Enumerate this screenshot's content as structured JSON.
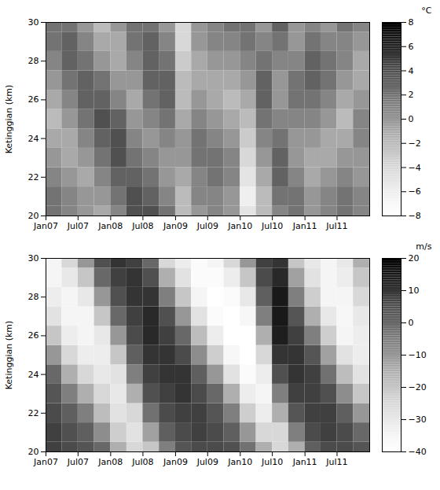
{
  "chart_data": [
    {
      "type": "heatmap",
      "y_label": "Ketinggian (km)",
      "x": [
        "2007-01",
        "2007-04",
        "2007-07",
        "2007-10",
        "2008-01",
        "2008-04",
        "2008-07",
        "2008-10",
        "2009-01",
        "2009-04",
        "2009-07",
        "2009-10",
        "2010-01",
        "2010-04",
        "2010-07",
        "2010-10",
        "2011-01",
        "2011-04",
        "2011-07",
        "2011-10"
      ],
      "y": [
        20,
        21,
        22,
        23,
        24,
        25,
        26,
        27,
        28,
        29,
        30
      ],
      "values": [
        [
          2,
          2,
          1,
          0,
          -1,
          -2,
          -1,
          0,
          1,
          2,
          2
        ],
        [
          1,
          1,
          0,
          -1,
          -1,
          0,
          1,
          2,
          3,
          3,
          2
        ],
        [
          0,
          0,
          -1,
          0,
          1,
          2,
          3,
          3,
          2,
          1,
          0
        ],
        [
          -1,
          0,
          1,
          2,
          3,
          4,
          3,
          2,
          0,
          -1,
          -2
        ],
        [
          1,
          2,
          3,
          4,
          4,
          3,
          1,
          0,
          -1,
          -1,
          0
        ],
        [
          4,
          4,
          3,
          2,
          1,
          0,
          -1,
          0,
          1,
          2,
          2
        ],
        [
          4,
          3,
          2,
          1,
          0,
          1,
          2,
          3,
          3,
          3,
          2
        ],
        [
          2,
          1,
          0,
          0,
          1,
          2,
          3,
          3,
          2,
          1,
          0
        ],
        [
          -2,
          -2,
          -1,
          0,
          0,
          -1,
          -2,
          -2,
          -3,
          -4,
          -4
        ],
        [
          0,
          1,
          1,
          2,
          2,
          1,
          0,
          -1,
          -1,
          0,
          0
        ],
        [
          1,
          1,
          2,
          2,
          1,
          0,
          -1,
          -1,
          0,
          1,
          1
        ],
        [
          0,
          0,
          1,
          1,
          0,
          -1,
          -2,
          -1,
          0,
          1,
          2
        ],
        [
          -5,
          -6,
          -5,
          -4,
          -3,
          -2,
          -1,
          0,
          1,
          2,
          2
        ],
        [
          -2,
          -2,
          -1,
          0,
          1,
          2,
          3,
          3,
          2,
          1,
          0
        ],
        [
          1,
          2,
          3,
          3,
          2,
          1,
          0,
          0,
          1,
          2,
          3
        ],
        [
          2,
          2,
          1,
          0,
          0,
          1,
          2,
          2,
          1,
          0,
          0
        ],
        [
          0,
          0,
          -1,
          -1,
          0,
          1,
          2,
          3,
          3,
          2,
          1
        ],
        [
          1,
          1,
          0,
          -1,
          -1,
          0,
          1,
          2,
          2,
          1,
          0
        ],
        [
          2,
          2,
          1,
          0,
          -1,
          -2,
          -1,
          0,
          1,
          1,
          2
        ],
        [
          1,
          1,
          0,
          0,
          1,
          1,
          0,
          -1,
          -1,
          0,
          1
        ]
      ],
      "xlim": [
        "2007-01",
        "2012-01"
      ],
      "xticks": [
        {
          "value": "2007-01",
          "label": "Jan07"
        },
        {
          "value": "2007-07",
          "label": "Jul07"
        },
        {
          "value": "2008-01",
          "label": "Jan08"
        },
        {
          "value": "2008-07",
          "label": "Jul08"
        },
        {
          "value": "2009-01",
          "label": "Jan09"
        },
        {
          "value": "2009-07",
          "label": "Jul09"
        },
        {
          "value": "2010-01",
          "label": "Jan10"
        },
        {
          "value": "2010-07",
          "label": "Jul10"
        },
        {
          "value": "2011-01",
          "label": "Jan11"
        },
        {
          "value": "2011-07",
          "label": "Jul11"
        }
      ],
      "ylim": [
        20,
        30
      ],
      "yticks": [
        20,
        22,
        24,
        26,
        28,
        30
      ],
      "colorbar": {
        "label": "°C",
        "range": [
          -8,
          8
        ],
        "ticks": [
          -8,
          -6,
          -4,
          -2,
          0,
          2,
          4,
          6,
          8
        ]
      }
    },
    {
      "type": "heatmap",
      "y_label": "Ketinggian (km)",
      "x": [
        "2007-01",
        "2007-04",
        "2007-07",
        "2007-10",
        "2008-01",
        "2008-04",
        "2008-07",
        "2008-10",
        "2009-01",
        "2009-04",
        "2009-07",
        "2009-10",
        "2010-01",
        "2010-04",
        "2010-07",
        "2010-10",
        "2011-01",
        "2011-04",
        "2011-07",
        "2011-10"
      ],
      "y": [
        20,
        21,
        22,
        23,
        24,
        25,
        26,
        27,
        28,
        29,
        30
      ],
      "values": [
        [
          8,
          8,
          6,
          4,
          0,
          -10,
          -20,
          -28,
          -32,
          -35,
          -35
        ],
        [
          6,
          5,
          2,
          -5,
          -15,
          -25,
          -32,
          -35,
          -35,
          -30,
          -25
        ],
        [
          4,
          2,
          -5,
          -15,
          -25,
          -32,
          -35,
          -35,
          -30,
          -20,
          -10
        ],
        [
          0,
          -8,
          -18,
          -25,
          -30,
          -32,
          -30,
          -20,
          -10,
          0,
          5
        ],
        [
          -15,
          -22,
          -28,
          -30,
          -28,
          -20,
          -10,
          0,
          5,
          8,
          10
        ],
        [
          -25,
          -28,
          -25,
          -15,
          -5,
          2,
          6,
          8,
          10,
          10,
          8
        ],
        [
          -20,
          -12,
          -2,
          5,
          8,
          10,
          12,
          12,
          10,
          5,
          0
        ],
        [
          -5,
          2,
          6,
          8,
          10,
          10,
          8,
          5,
          -5,
          -15,
          -25
        ],
        [
          4,
          6,
          8,
          10,
          10,
          6,
          0,
          -10,
          -20,
          -28,
          -32
        ],
        [
          6,
          8,
          8,
          6,
          2,
          -8,
          -18,
          -28,
          -35,
          -38,
          -38
        ],
        [
          6,
          6,
          4,
          0,
          -10,
          -22,
          -32,
          -38,
          -40,
          -38,
          -35
        ],
        [
          5,
          2,
          -5,
          -15,
          -28,
          -36,
          -40,
          -40,
          -38,
          -32,
          -25
        ],
        [
          -2,
          -10,
          -22,
          -32,
          -38,
          -40,
          -40,
          -36,
          -30,
          -20,
          -10
        ],
        [
          -15,
          -25,
          -32,
          -35,
          -32,
          -25,
          -15,
          -5,
          2,
          6,
          8
        ],
        [
          -25,
          -25,
          -15,
          -5,
          5,
          10,
          14,
          15,
          15,
          12,
          10
        ],
        [
          -15,
          -5,
          4,
          8,
          10,
          10,
          8,
          4,
          -5,
          -12,
          -20
        ],
        [
          2,
          6,
          8,
          8,
          8,
          4,
          -5,
          -15,
          -22,
          -28,
          -30
        ],
        [
          6,
          8,
          8,
          5,
          -2,
          -12,
          -22,
          -30,
          -35,
          -35,
          -35
        ],
        [
          6,
          6,
          2,
          -8,
          -18,
          -28,
          -35,
          -36,
          -35,
          -32,
          -30
        ],
        [
          4,
          0,
          -10,
          -20,
          -28,
          -32,
          -32,
          -30,
          -25,
          -20,
          -15
        ]
      ],
      "xlim": [
        "2007-01",
        "2012-01"
      ],
      "xticks": [
        {
          "value": "2007-01",
          "label": "Jan07"
        },
        {
          "value": "2007-07",
          "label": "Jul07"
        },
        {
          "value": "2008-01",
          "label": "Jan08"
        },
        {
          "value": "2008-07",
          "label": "Jul08"
        },
        {
          "value": "2009-01",
          "label": "Jan09"
        },
        {
          "value": "2009-07",
          "label": "Jul09"
        },
        {
          "value": "2010-01",
          "label": "Jan10"
        },
        {
          "value": "2010-07",
          "label": "Jul10"
        },
        {
          "value": "2011-01",
          "label": "Jan11"
        },
        {
          "value": "2011-07",
          "label": "Jul11"
        }
      ],
      "ylim": [
        20,
        30
      ],
      "yticks": [
        20,
        22,
        24,
        26,
        28,
        30
      ],
      "colorbar": {
        "label": "m/s",
        "range": [
          -40,
          20
        ],
        "ticks": [
          -40,
          -30,
          -20,
          -10,
          0,
          10,
          20
        ]
      }
    }
  ]
}
